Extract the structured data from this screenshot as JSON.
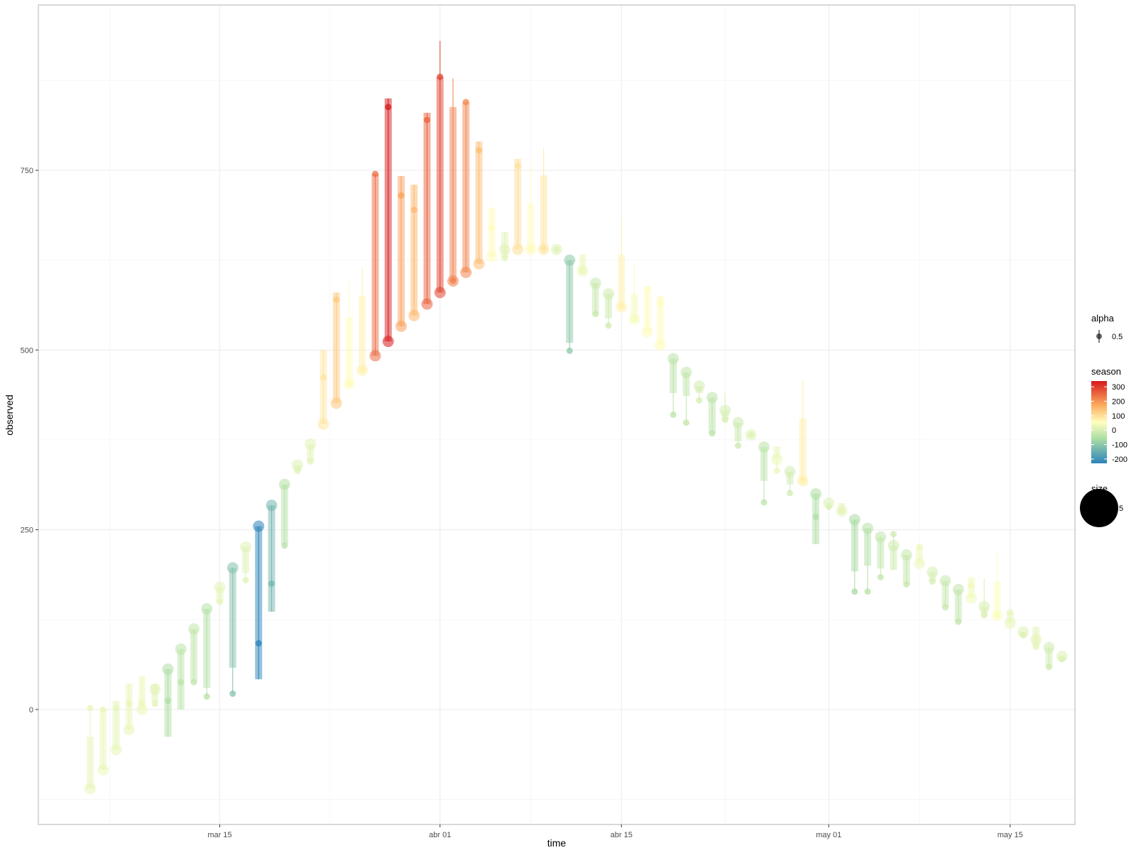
{
  "chart_data": {
    "type": "bar",
    "subtype": "seasonal-decomposition candlestick (floating bars with whiskers and points)",
    "title": "",
    "xlabel": "time",
    "ylabel": "observed",
    "x_tick_labels": [
      "mar 15",
      "abr 01",
      "abr 15",
      "may 01",
      "may 15"
    ],
    "x_tick_dates": [
      "2020-03-15",
      "2020-04-01",
      "2020-04-15",
      "2020-05-01",
      "2020-05-15"
    ],
    "y_tick_labels": [
      "0",
      "250",
      "500",
      "750"
    ],
    "y_ticks": [
      0,
      250,
      500,
      750
    ],
    "xlim": [
      "2020-03-01",
      "2020-05-20"
    ],
    "ylim": [
      -160,
      980
    ],
    "grid": true,
    "theme": "light",
    "legend_position": "right",
    "legend": {
      "alpha": {
        "title": "alpha",
        "label": "0.5"
      },
      "season": {
        "title": "season",
        "labels": [
          "300",
          "200",
          "100",
          "0",
          "-100",
          "-200"
        ],
        "values": [
          300,
          200,
          100,
          0,
          -100,
          -200
        ],
        "min": -230,
        "max": 340,
        "colors": [
          "#d7191c",
          "#fdae61",
          "#ffffbf",
          "#abdda4",
          "#2b83ba"
        ]
      },
      "size": {
        "title": "size",
        "label": "5"
      }
    },
    "columns": [
      "date",
      "observed",
      "bar_low",
      "bar_high",
      "point",
      "whisker_top",
      "season"
    ],
    "series": [
      {
        "name": "",
        "values": [
          [
            "2020-03-05",
            -110,
            -110,
            -38,
            2,
            2,
            15
          ],
          [
            "2020-03-06",
            -84,
            -84,
            0,
            0,
            0,
            20
          ],
          [
            "2020-03-07",
            -56,
            -56,
            12,
            2,
            12,
            12
          ],
          [
            "2020-03-08",
            -28,
            -28,
            36,
            8,
            36,
            18
          ],
          [
            "2020-03-09",
            0,
            0,
            46,
            10,
            46,
            25
          ],
          [
            "2020-03-10",
            28,
            10,
            36,
            8,
            36,
            5
          ],
          [
            "2020-03-11",
            56,
            -38,
            56,
            12,
            56,
            -80
          ],
          [
            "2020-03-12",
            84,
            0,
            84,
            38,
            84,
            -60
          ],
          [
            "2020-03-13",
            112,
            38,
            112,
            38,
            112,
            -50
          ],
          [
            "2020-03-14",
            140,
            30,
            140,
            18,
            140,
            -70
          ],
          [
            "2020-03-15",
            170,
            150,
            170,
            150,
            170,
            10
          ],
          [
            "2020-03-16",
            197,
            58,
            197,
            22,
            197,
            -130
          ],
          [
            "2020-03-17",
            226,
            190,
            226,
            180,
            226,
            0
          ],
          [
            "2020-03-18",
            255,
            42,
            255,
            92,
            255,
            -230
          ],
          [
            "2020-03-19",
            284,
            136,
            284,
            175,
            284,
            -150
          ],
          [
            "2020-03-20",
            313,
            230,
            313,
            228,
            313,
            -70
          ],
          [
            "2020-03-21",
            340,
            332,
            340,
            332,
            340,
            0
          ],
          [
            "2020-03-22",
            369,
            345,
            369,
            345,
            369,
            5
          ],
          [
            "2020-03-23",
            397,
            397,
            500,
            462,
            500,
            100
          ],
          [
            "2020-03-24",
            426,
            426,
            580,
            570,
            580,
            150
          ],
          [
            "2020-03-25",
            453,
            453,
            545,
            453,
            595,
            60
          ],
          [
            "2020-03-26",
            472,
            472,
            575,
            472,
            615,
            80
          ],
          [
            "2020-03-27",
            492,
            492,
            745,
            745,
            745,
            260
          ],
          [
            "2020-03-28",
            512,
            512,
            850,
            838,
            850,
            340
          ],
          [
            "2020-03-29",
            533,
            533,
            742,
            715,
            742,
            210
          ],
          [
            "2020-03-30",
            548,
            548,
            730,
            695,
            730,
            180
          ],
          [
            "2020-03-31",
            564,
            564,
            830,
            820,
            830,
            270
          ],
          [
            "2020-04-01",
            580,
            580,
            880,
            880,
            930,
            300
          ],
          [
            "2020-04-02",
            596,
            596,
            838,
            596,
            878,
            240
          ],
          [
            "2020-04-03",
            608,
            608,
            845,
            845,
            845,
            235
          ],
          [
            "2020-04-04",
            620,
            620,
            790,
            778,
            790,
            170
          ],
          [
            "2020-04-05",
            630,
            630,
            698,
            670,
            698,
            60
          ],
          [
            "2020-04-06",
            640,
            628,
            664,
            628,
            664,
            5
          ],
          [
            "2020-04-07",
            640,
            640,
            766,
            756,
            766,
            110
          ],
          [
            "2020-04-08",
            640,
            640,
            704,
            640,
            756,
            60
          ],
          [
            "2020-04-09",
            640,
            640,
            743,
            640,
            780,
            100
          ],
          [
            "2020-04-10",
            640,
            640,
            640,
            640,
            640,
            0
          ],
          [
            "2020-04-11",
            625,
            510,
            625,
            499,
            625,
            -120
          ],
          [
            "2020-04-12",
            610,
            610,
            633,
            610,
            633,
            20
          ],
          [
            "2020-04-13",
            593,
            550,
            593,
            550,
            593,
            -40
          ],
          [
            "2020-04-14",
            578,
            544,
            578,
            534,
            578,
            -30
          ],
          [
            "2020-04-15",
            560,
            560,
            633,
            560,
            685,
            80
          ],
          [
            "2020-04-16",
            543,
            543,
            578,
            543,
            617,
            40
          ],
          [
            "2020-04-17",
            525,
            525,
            585,
            585,
            585,
            60
          ],
          [
            "2020-04-18",
            507,
            507,
            575,
            565,
            575,
            60
          ],
          [
            "2020-04-19",
            488,
            440,
            488,
            410,
            488,
            -60
          ],
          [
            "2020-04-20",
            469,
            436,
            469,
            399,
            469,
            -50
          ],
          [
            "2020-04-21",
            450,
            440,
            450,
            430,
            450,
            -20
          ],
          [
            "2020-04-22",
            434,
            384,
            434,
            384,
            434,
            -60
          ],
          [
            "2020-04-23",
            416,
            403,
            416,
            403,
            440,
            -15
          ],
          [
            "2020-04-24",
            399,
            373,
            399,
            367,
            399,
            -35
          ],
          [
            "2020-04-25",
            382,
            382,
            382,
            382,
            382,
            0
          ],
          [
            "2020-04-26",
            365,
            318,
            365,
            288,
            365,
            -60
          ],
          [
            "2020-04-27",
            348,
            348,
            366,
            332,
            366,
            20
          ],
          [
            "2020-04-28",
            331,
            313,
            331,
            301,
            331,
            -25
          ],
          [
            "2020-04-29",
            318,
            318,
            405,
            318,
            458,
            85
          ],
          [
            "2020-04-30",
            300,
            230,
            300,
            268,
            300,
            -80
          ],
          [
            "2020-05-01",
            287,
            287,
            287,
            282,
            287,
            -5
          ],
          [
            "2020-05-02",
            276,
            276,
            287,
            276,
            287,
            10
          ],
          [
            "2020-05-03",
            264,
            192,
            264,
            164,
            264,
            -90
          ],
          [
            "2020-05-04",
            252,
            200,
            252,
            164,
            252,
            -70
          ],
          [
            "2020-05-05",
            240,
            196,
            240,
            184,
            240,
            -50
          ],
          [
            "2020-05-06",
            228,
            194,
            228,
            244,
            244,
            -30
          ],
          [
            "2020-05-07",
            215,
            174,
            215,
            174,
            215,
            -45
          ],
          [
            "2020-05-08",
            203,
            203,
            226,
            226,
            226,
            25
          ],
          [
            "2020-05-09",
            191,
            178,
            191,
            178,
            191,
            -15
          ],
          [
            "2020-05-10",
            179,
            142,
            179,
            142,
            179,
            -40
          ],
          [
            "2020-05-11",
            167,
            122,
            167,
            122,
            167,
            -50
          ],
          [
            "2020-05-12",
            155,
            155,
            184,
            172,
            184,
            30
          ],
          [
            "2020-05-13",
            143,
            131,
            143,
            131,
            182,
            -10
          ],
          [
            "2020-05-14",
            131,
            131,
            178,
            131,
            218,
            50
          ],
          [
            "2020-05-15",
            120,
            120,
            135,
            135,
            135,
            15
          ],
          [
            "2020-05-16",
            108,
            103,
            108,
            103,
            108,
            -5
          ],
          [
            "2020-05-17",
            97,
            87,
            115,
            87,
            115,
            10
          ],
          [
            "2020-05-18",
            86,
            59,
            86,
            59,
            86,
            -30
          ],
          [
            "2020-05-19",
            74,
            70,
            74,
            70,
            74,
            -5
          ]
        ]
      }
    ]
  }
}
